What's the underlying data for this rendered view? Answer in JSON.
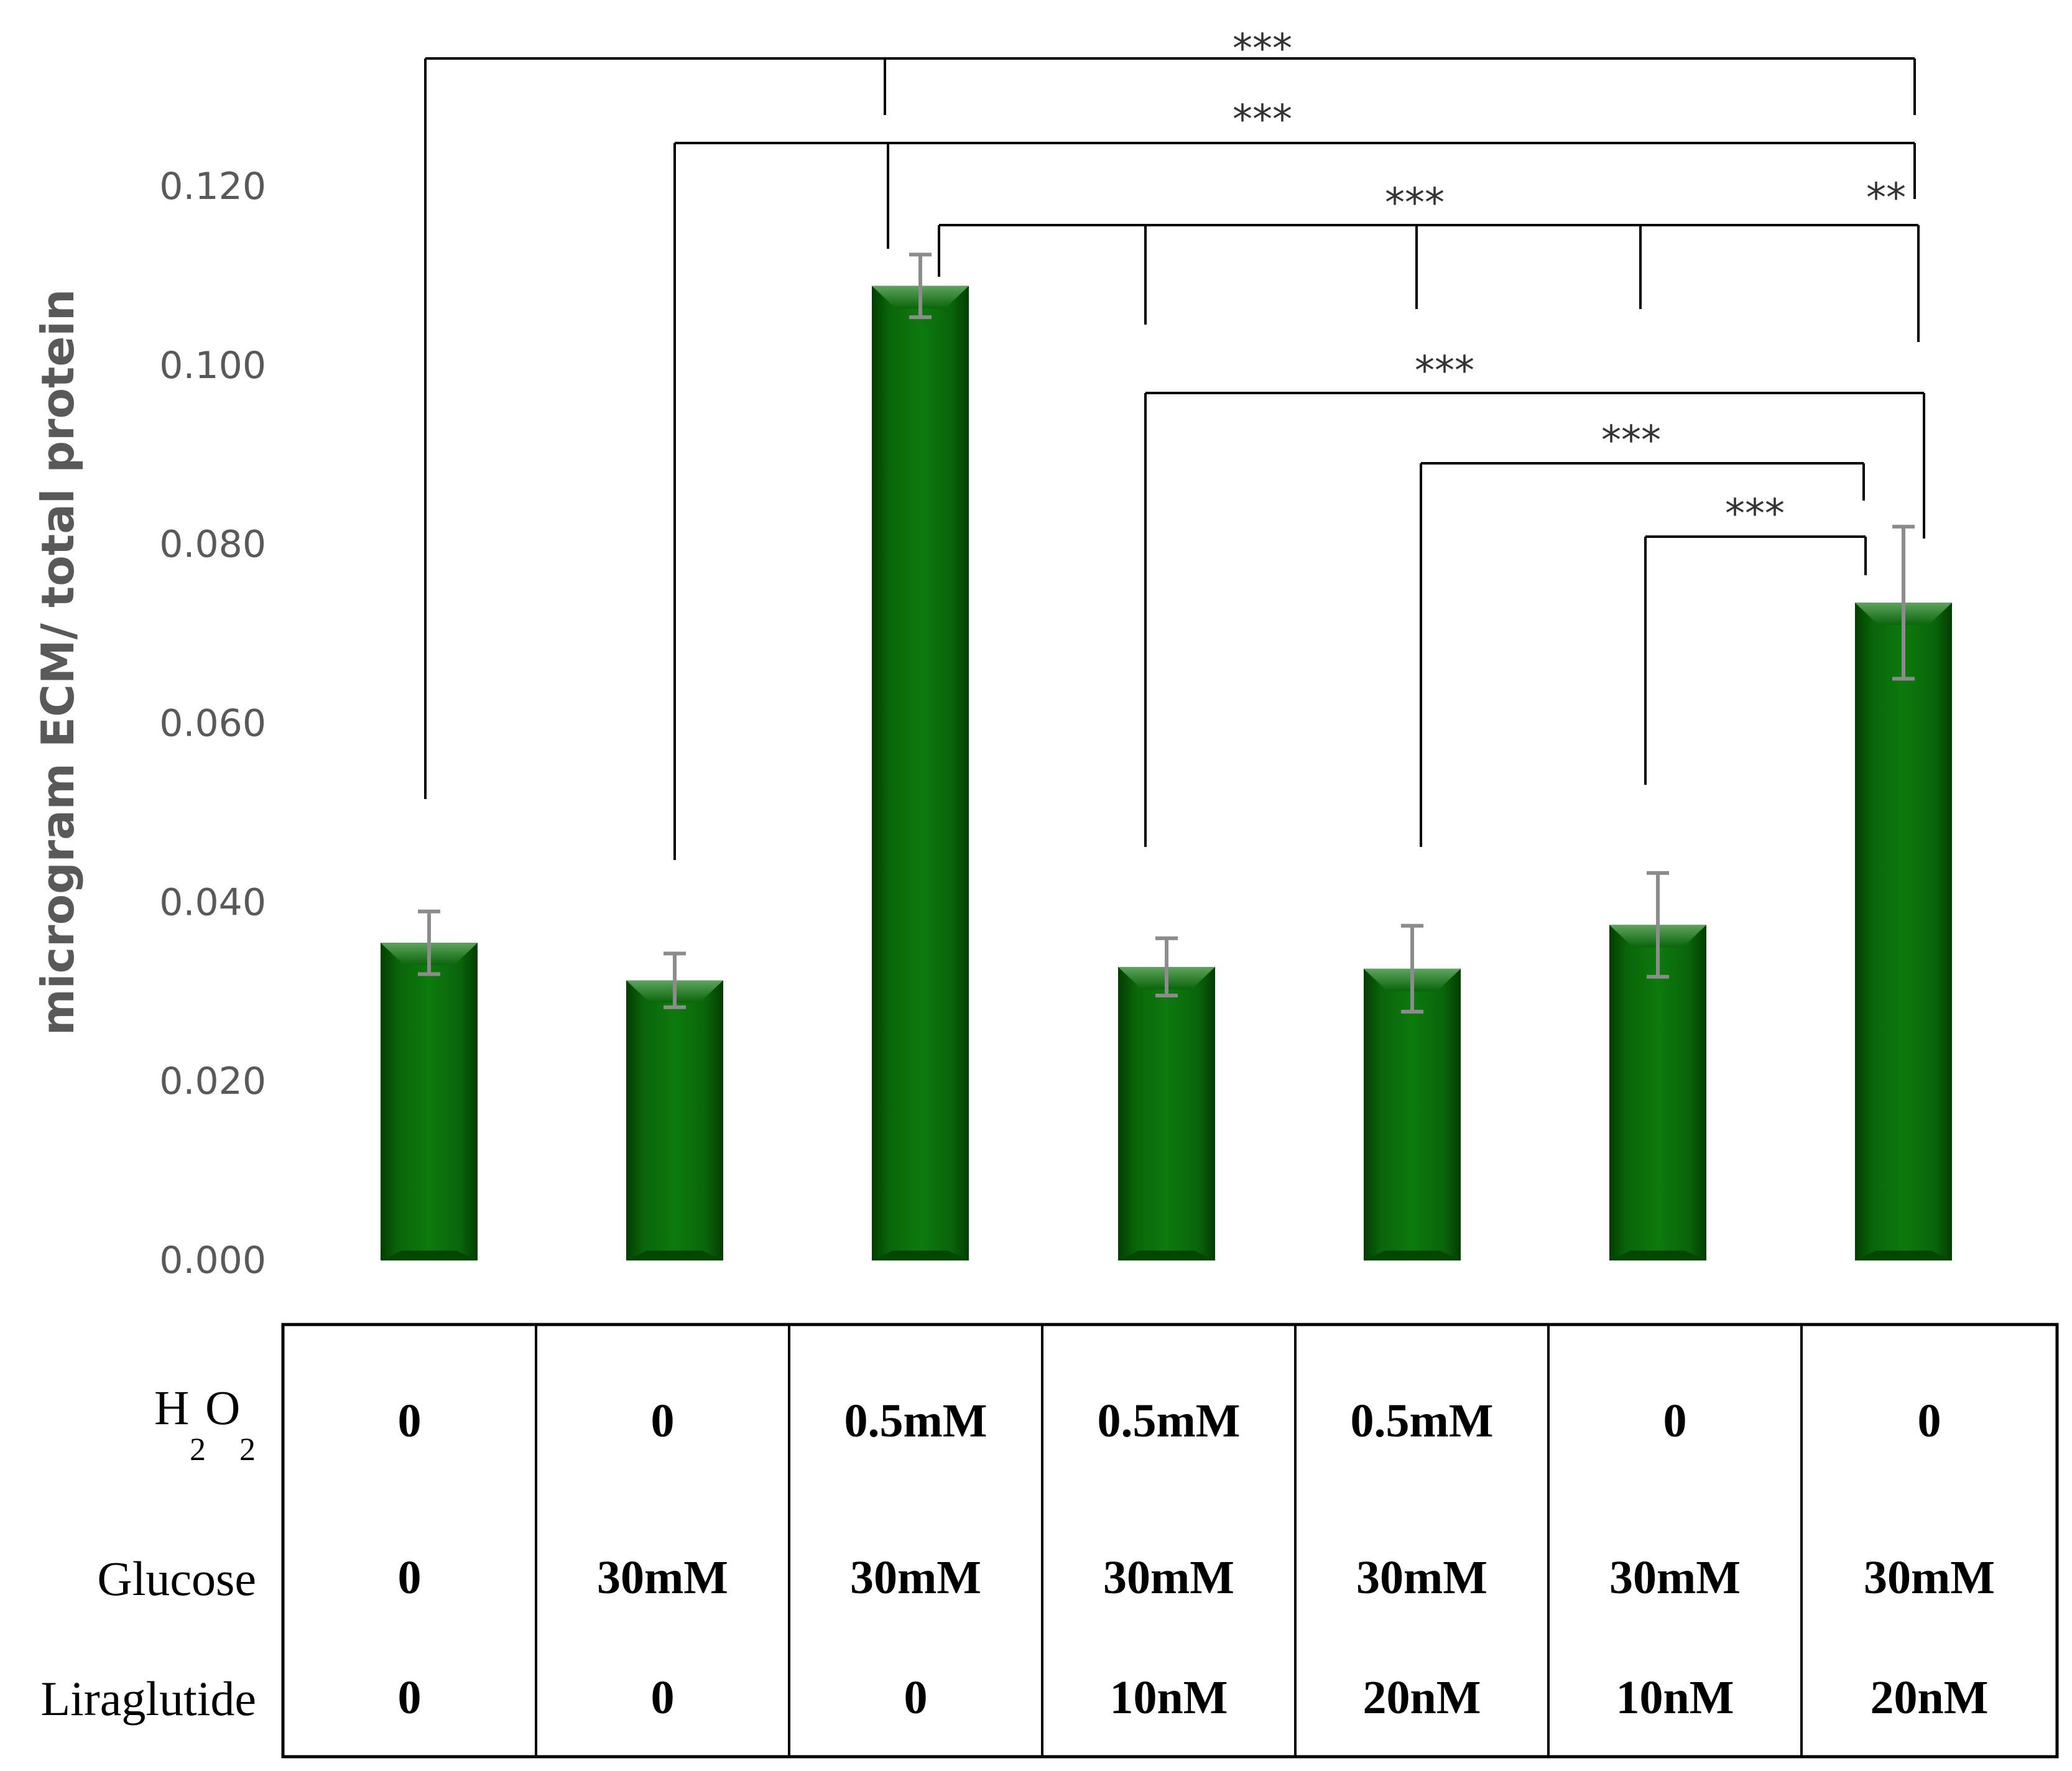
{
  "chart_data": {
    "type": "bar",
    "ylabel": "microgram ECM/ total protein",
    "ylim": [
      0,
      0.12
    ],
    "yticks": [
      "0.000",
      "0.020",
      "0.040",
      "0.060",
      "0.080",
      "0.100",
      "0.120"
    ],
    "bar_color": "#0a650a",
    "error_color": "#8c8c8c",
    "grid": false,
    "legend": "none",
    "groups": [
      {
        "h2o2": "0",
        "glucose": "0",
        "liraglutide": "0",
        "value": 0.0355,
        "error": 0.0035
      },
      {
        "h2o2": "0",
        "glucose": "30mM",
        "liraglutide": "0",
        "value": 0.0313,
        "error": 0.003
      },
      {
        "h2o2": "0.5mM",
        "glucose": "30mM",
        "liraglutide": "0",
        "value": 0.1089,
        "error": 0.0035
      },
      {
        "h2o2": "0.5mM",
        "glucose": "30mM",
        "liraglutide": "10nM",
        "value": 0.0328,
        "error": 0.0032
      },
      {
        "h2o2": "0.5mM",
        "glucose": "30mM",
        "liraglutide": "20nM",
        "value": 0.0326,
        "error": 0.0048
      },
      {
        "h2o2": "0",
        "glucose": "30mM",
        "liraglutide": "10nM",
        "value": 0.0375,
        "error": 0.0058
      },
      {
        "h2o2": "0",
        "glucose": "30mM",
        "liraglutide": "20nM",
        "value": 0.0735,
        "error": 0.0085
      }
    ],
    "table_rows": {
      "h2o2_main": "H",
      "h2o2_sub1": "2",
      "h2o2_mid": "O",
      "h2o2_sub2": "2",
      "glucose": "Glucose",
      "liraglutide": "Liraglutide"
    },
    "significance": [
      {
        "label": "***",
        "from": 0,
        "to": 6,
        "y": 0.1345
      },
      {
        "label": "***",
        "from": 1,
        "to": 6,
        "y": 0.125
      },
      {
        "label": "***",
        "from": 2,
        "to": 4,
        "y": 0.116
      },
      {
        "label": "**",
        "from": 2,
        "to": 6,
        "y": 0.116
      },
      {
        "label": "***",
        "from": 3,
        "to": 6,
        "y": 0.097
      },
      {
        "label": "***",
        "from": 4,
        "to": 6,
        "y": 0.0895
      },
      {
        "label": "***",
        "from": 5,
        "to": 6,
        "y": 0.081
      }
    ]
  }
}
